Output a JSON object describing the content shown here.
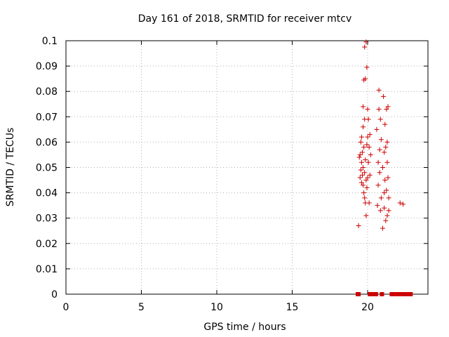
{
  "chart_data": {
    "type": "scatter",
    "title": "Day 161 of 2018, SRMTID for receiver mtcv",
    "xlabel": "GPS time / hours",
    "ylabel": "SRMTID / TECUs",
    "xlim": [
      0,
      24
    ],
    "ylim": [
      0,
      0.1
    ],
    "xticks": [
      "0",
      "5",
      "10",
      "15",
      "20"
    ],
    "yticks": [
      "0",
      "0.01",
      "0.02",
      "0.03",
      "0.04",
      "0.05",
      "0.06",
      "0.07",
      "0.08",
      "0.09",
      "0.1"
    ],
    "grid": true,
    "marker": "+",
    "color": "#cc0000",
    "series": [
      {
        "x": [
          19.4,
          19.45,
          19.5,
          19.5,
          19.55,
          19.55,
          19.6,
          19.6,
          19.6,
          19.65,
          19.65,
          19.7,
          19.7,
          19.7,
          19.7,
          19.75,
          19.75,
          19.75,
          19.8,
          19.8,
          19.8,
          19.8,
          19.85,
          19.85,
          19.85,
          19.9,
          19.9,
          19.9,
          19.95,
          19.95,
          19.95,
          20.0,
          20.0,
          20.0,
          20.05,
          20.05,
          20.1,
          20.1,
          20.15,
          20.15,
          20.2,
          20.6,
          20.65,
          20.7,
          20.7,
          20.75,
          20.75,
          20.8,
          20.8,
          20.85,
          20.85,
          20.9,
          20.9,
          21.0,
          21.0,
          21.05,
          21.1,
          21.1,
          21.1,
          21.15,
          21.15,
          21.2,
          21.2,
          21.25,
          21.25,
          21.3,
          21.3,
          21.3,
          21.35,
          21.35,
          21.4,
          21.4,
          22.15,
          22.35
        ],
        "y": [
          0.027,
          0.054,
          0.046,
          0.055,
          0.049,
          0.06,
          0.044,
          0.052,
          0.062,
          0.047,
          0.056,
          0.043,
          0.05,
          0.066,
          0.074,
          0.04,
          0.058,
          0.0845,
          0.038,
          0.0975,
          0.048,
          0.069,
          0.036,
          0.053,
          0.085,
          0.045,
          0.0995,
          0.031,
          0.059,
          0.0895,
          0.042,
          0.046,
          0.062,
          0.073,
          0.052,
          0.069,
          0.058,
          0.036,
          0.047,
          0.063,
          0.055,
          0.065,
          0.035,
          0.043,
          0.052,
          0.0805,
          0.073,
          0.057,
          0.048,
          0.069,
          0.033,
          0.038,
          0.061,
          0.026,
          0.05,
          0.078,
          0.04,
          0.056,
          0.034,
          0.067,
          0.045,
          0.029,
          0.058,
          0.041,
          0.073,
          0.052,
          0.031,
          0.06,
          0.046,
          0.074,
          0.033,
          0.038,
          0.036,
          0.0355
        ]
      },
      {
        "x": [
          19.35,
          19.4,
          20.15,
          20.25,
          20.35,
          20.45,
          20.55,
          20.95,
          21.6,
          21.7,
          21.8,
          21.9,
          22.0,
          22.1,
          22.2,
          22.3,
          22.4,
          22.5,
          22.6,
          22.7,
          22.8,
          22.85
        ],
        "y": [
          0,
          0,
          0,
          0,
          0,
          0,
          0,
          0,
          0,
          0,
          0,
          0,
          0,
          0,
          0,
          0,
          0,
          0,
          0,
          0,
          0,
          0
        ],
        "marker": "square"
      }
    ]
  }
}
